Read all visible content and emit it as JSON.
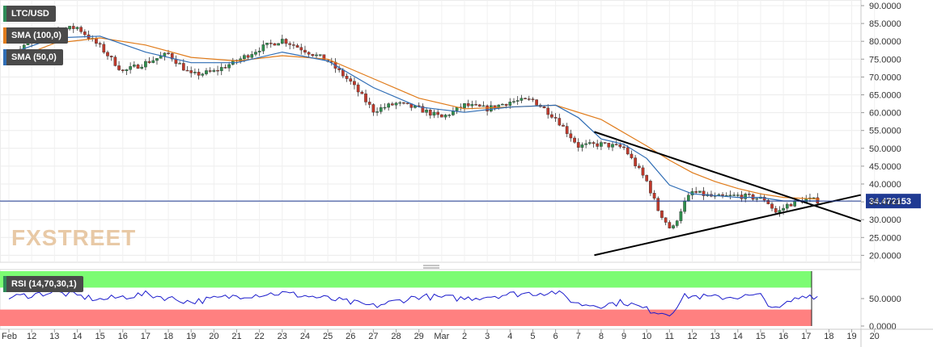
{
  "chart_data": [
    {
      "type": "candlestick",
      "title": "LTC/USD",
      "symbol": "LTC/USD",
      "watermark": "FXSTREET",
      "y_ticks": [
        "90.0000",
        "85.0000",
        "80.0000",
        "75.0000",
        "70.0000",
        "65.0000",
        "60.0000",
        "55.0000",
        "50.0000",
        "45.0000",
        "40.0000",
        "35.0000",
        "30.0000",
        "25.0000",
        "20.0000"
      ],
      "ylim": [
        17.2,
        91.2
      ],
      "last_price": "34.472153",
      "last_price_value": 34.47,
      "x_ticks": [
        "Feb",
        "12",
        "13",
        "14",
        "15",
        "16",
        "17",
        "18",
        "19",
        "20",
        "21",
        "22",
        "23",
        "24",
        "25",
        "26",
        "27",
        "28",
        "29",
        "Mar",
        "2",
        "3",
        "4",
        "5",
        "6",
        "7",
        "8",
        "9",
        "10",
        "11",
        "12",
        "13",
        "14",
        "15",
        "16",
        "17",
        "18",
        "19",
        "20"
      ],
      "grid": true,
      "series": [
        {
          "name": "SMA (100,0)",
          "color": "#e07b1a"
        },
        {
          "name": "SMA (50,0)",
          "color": "#2f6db5"
        }
      ],
      "price_path": [
        [
          0,
          75.0
        ],
        [
          1,
          79.5
        ],
        [
          2,
          82.5
        ],
        [
          3,
          83.5
        ],
        [
          4,
          78.0
        ],
        [
          5,
          71.0
        ],
        [
          6,
          73.5
        ],
        [
          7,
          76.0
        ],
        [
          8,
          70.0
        ],
        [
          9,
          71.0
        ],
        [
          10,
          74.0
        ],
        [
          11,
          77.5
        ],
        [
          12,
          80.0
        ],
        [
          13,
          77.0
        ],
        [
          14,
          74.0
        ],
        [
          15,
          68.0
        ],
        [
          16,
          60.0
        ],
        [
          17,
          62.0
        ],
        [
          18,
          60.5
        ],
        [
          19,
          58.0
        ],
        [
          20,
          61.5
        ],
        [
          21,
          60.5
        ],
        [
          22,
          62.5
        ],
        [
          23,
          63.0
        ],
        [
          24,
          58.0
        ],
        [
          25,
          50.0
        ],
        [
          26,
          50.5
        ],
        [
          27,
          49.5
        ],
        [
          28,
          40.0
        ],
        [
          28.5,
          32.0
        ],
        [
          29.1,
          26.0
        ],
        [
          29.6,
          33.5
        ],
        [
          30,
          37.0
        ],
        [
          31,
          35.5
        ],
        [
          32,
          36.0
        ],
        [
          33.2,
          35.0
        ],
        [
          33.7,
          31.0
        ],
        [
          34.2,
          33.5
        ],
        [
          35,
          35.0
        ],
        [
          35.6,
          34.47
        ]
      ],
      "sma_100": [
        [
          0,
          74.0
        ],
        [
          2,
          79.0
        ],
        [
          4,
          80.5
        ],
        [
          6,
          78.5
        ],
        [
          8,
          75.0
        ],
        [
          10,
          74.0
        ],
        [
          12,
          75.5
        ],
        [
          14,
          74.5
        ],
        [
          16,
          69.0
        ],
        [
          18,
          63.5
        ],
        [
          20,
          60.5
        ],
        [
          22,
          61.0
        ],
        [
          24,
          61.5
        ],
        [
          26,
          57.5
        ],
        [
          28,
          50.0
        ],
        [
          29,
          46.0
        ],
        [
          30,
          42.5
        ],
        [
          31,
          40.0
        ],
        [
          32,
          38.0
        ],
        [
          33,
          36.5
        ],
        [
          34,
          35.5
        ],
        [
          35.6,
          35.0
        ]
      ],
      "sma_50": [
        [
          0,
          76.0
        ],
        [
          2,
          80.5
        ],
        [
          4,
          81.0
        ],
        [
          6,
          76.5
        ],
        [
          8,
          73.5
        ],
        [
          10,
          73.5
        ],
        [
          12,
          76.5
        ],
        [
          14,
          74.0
        ],
        [
          16,
          66.5
        ],
        [
          18,
          61.0
        ],
        [
          20,
          59.5
        ],
        [
          22,
          61.0
        ],
        [
          24,
          61.5
        ],
        [
          25,
          58.0
        ],
        [
          26,
          52.0
        ],
        [
          27,
          50.5
        ],
        [
          28,
          46.5
        ],
        [
          29,
          39.0
        ],
        [
          30,
          36.5
        ],
        [
          31,
          36.0
        ],
        [
          32,
          35.5
        ],
        [
          33,
          35.5
        ],
        [
          34,
          34.5
        ],
        [
          35.6,
          34.5
        ]
      ],
      "trendlines": [
        {
          "from": [
            25.7,
            54.0
          ],
          "to": [
            37.4,
            28.8
          ],
          "color": "#000000"
        },
        {
          "from": [
            25.7,
            19.2
          ],
          "to": [
            37.4,
            36.2
          ],
          "color": "#000000"
        }
      ]
    },
    {
      "type": "line",
      "title": "RSI (14,70,30,1)",
      "y_ticks": [
        "50.0000",
        "0.0000"
      ],
      "ylim": [
        0,
        100
      ],
      "overbought": 70,
      "oversold": 30,
      "overbought_color": "#7cfc73",
      "oversold_color": "#ff8080",
      "line_color": "#1a1acc",
      "rsi_path": [
        [
          0,
          52
        ],
        [
          2,
          62
        ],
        [
          4,
          48
        ],
        [
          6,
          58
        ],
        [
          8,
          44
        ],
        [
          10,
          55
        ],
        [
          12,
          60
        ],
        [
          14,
          50
        ],
        [
          16,
          36
        ],
        [
          18,
          54
        ],
        [
          20,
          50
        ],
        [
          22,
          58
        ],
        [
          24,
          62
        ],
        [
          25,
          40
        ],
        [
          26,
          38
        ],
        [
          27,
          44
        ],
        [
          28,
          30
        ],
        [
          29,
          22
        ],
        [
          29.7,
          55
        ],
        [
          31,
          52
        ],
        [
          33,
          55
        ],
        [
          33.7,
          28
        ],
        [
          34.3,
          45
        ],
        [
          35,
          57
        ],
        [
          35.6,
          53
        ]
      ]
    }
  ]
}
